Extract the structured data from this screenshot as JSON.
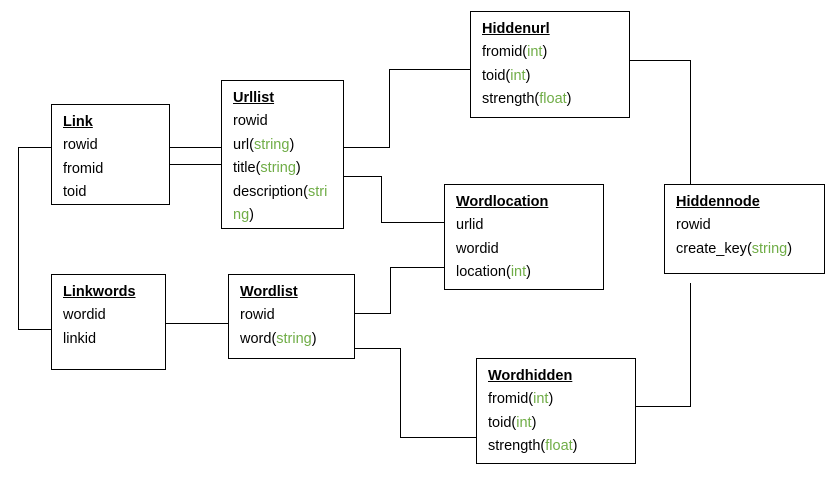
{
  "colors": {
    "type_text": "#70ad47",
    "line": "#000000",
    "border": "#000000"
  },
  "tables": [
    {
      "id": "link",
      "title": "Link",
      "fields": [
        {
          "name": "rowid"
        },
        {
          "name": "fromid"
        },
        {
          "name": "toid"
        }
      ]
    },
    {
      "id": "urllist",
      "title": "Urllist",
      "fields": [
        {
          "name": "rowid"
        },
        {
          "name": "url",
          "type": "string"
        },
        {
          "name": "title",
          "type": "string"
        },
        {
          "name": "description",
          "type": "string"
        }
      ]
    },
    {
      "id": "hiddenurl",
      "title": "Hiddenurl",
      "fields": [
        {
          "name": "fromid",
          "type": "int"
        },
        {
          "name": "toid",
          "type": "int"
        },
        {
          "name": "strength",
          "type": "float"
        }
      ]
    },
    {
      "id": "wordlocation",
      "title": "Wordlocation",
      "fields": [
        {
          "name": "urlid"
        },
        {
          "name": "wordid"
        },
        {
          "name": "location",
          "type": "int"
        }
      ]
    },
    {
      "id": "hiddennode",
      "title": "Hiddennode",
      "fields": [
        {
          "name": "rowid"
        },
        {
          "name": "create_key",
          "type": "string"
        }
      ]
    },
    {
      "id": "linkwords",
      "title": "Linkwords",
      "fields": [
        {
          "name": "wordid"
        },
        {
          "name": "linkid"
        }
      ]
    },
    {
      "id": "wordlist",
      "title": "Wordlist",
      "fields": [
        {
          "name": "rowid"
        },
        {
          "name": "word",
          "type": "string"
        }
      ]
    },
    {
      "id": "wordhidden",
      "title": "Wordhidden",
      "fields": [
        {
          "name": "fromid",
          "type": "int"
        },
        {
          "name": "toid",
          "type": "int"
        },
        {
          "name": "strength",
          "type": "float"
        }
      ]
    }
  ]
}
